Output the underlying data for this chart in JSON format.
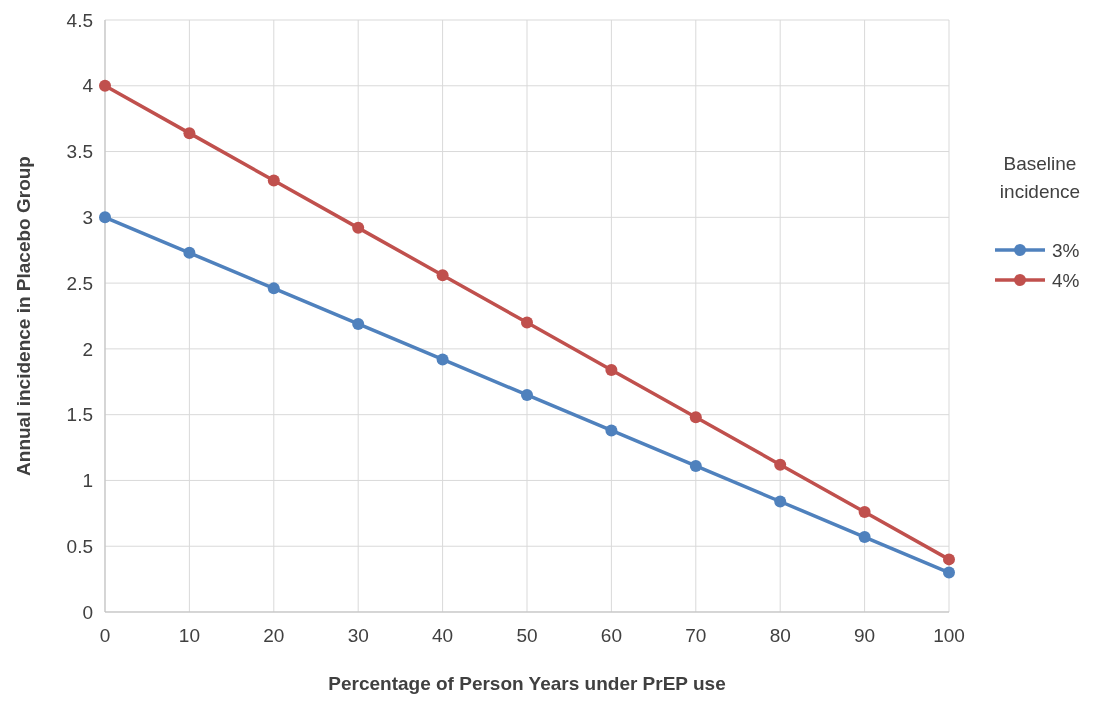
{
  "chart_data": {
    "type": "line",
    "xlabel": "Percentage of Person Years under PrEP use",
    "ylabel": "Annual incidence in Placebo Group",
    "legend_title": "Baseline incidence",
    "x": [
      0,
      10,
      20,
      30,
      40,
      50,
      60,
      70,
      80,
      90,
      100
    ],
    "series": [
      {
        "name": "3%",
        "color": "#4f81bd",
        "values": [
          3,
          2.73,
          2.46,
          2.19,
          1.92,
          1.65,
          1.38,
          1.11,
          0.84,
          0.57,
          0.3
        ]
      },
      {
        "name": "4%",
        "color": "#c0504d",
        "values": [
          4,
          3.64,
          3.28,
          2.92,
          2.56,
          2.2,
          1.84,
          1.48,
          1.12,
          0.76,
          0.4
        ]
      }
    ],
    "xlim": [
      0,
      100
    ],
    "xticks": [
      0,
      10,
      20,
      30,
      40,
      50,
      60,
      70,
      80,
      90,
      100
    ],
    "ylim": [
      0,
      4.5
    ],
    "yticks": [
      0,
      0.5,
      1,
      1.5,
      2,
      2.5,
      3,
      3.5,
      4,
      4.5
    ],
    "grid": true,
    "legend": "right",
    "marker": "circle",
    "line_style": "solid"
  }
}
